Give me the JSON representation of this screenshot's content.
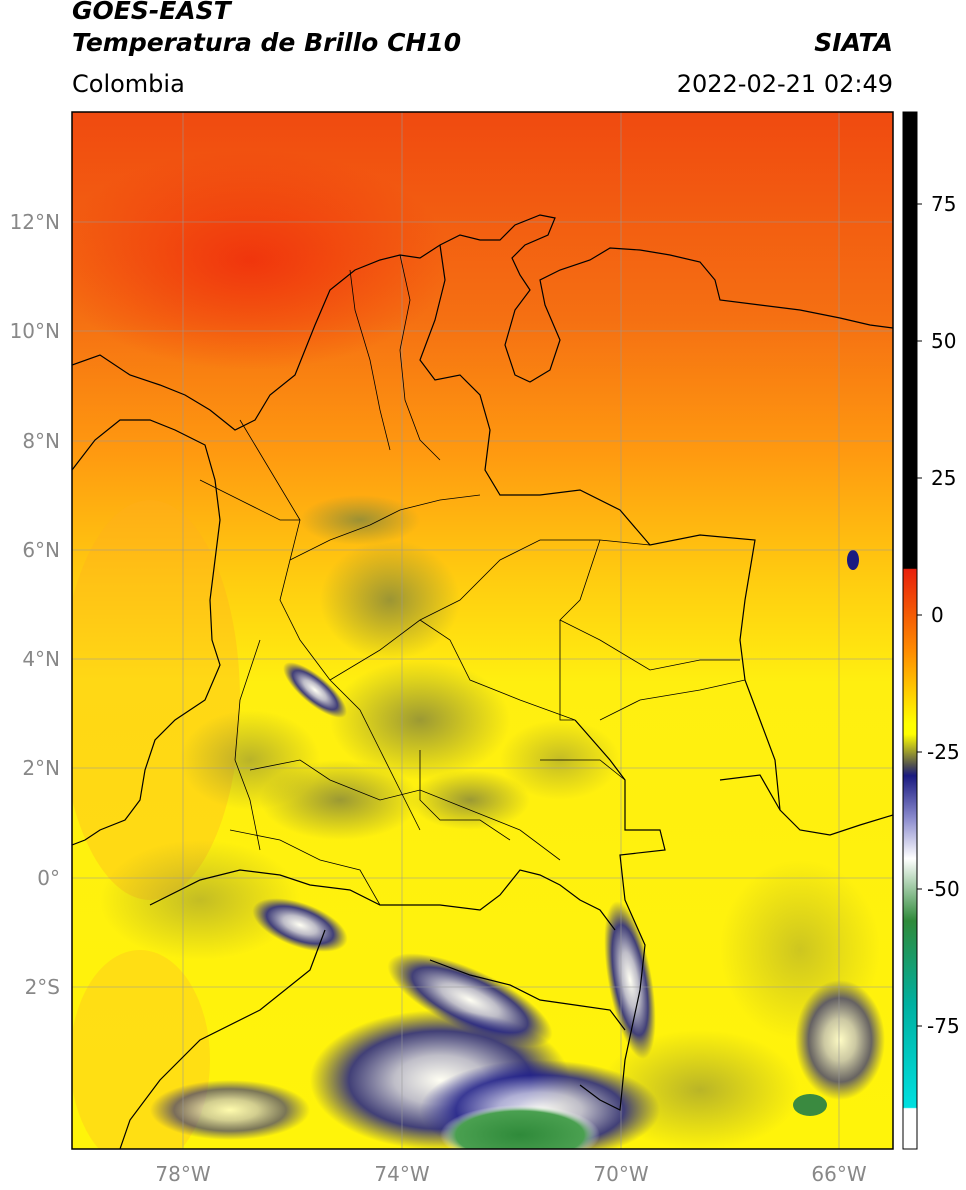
{
  "header": {
    "title_line1": "GOES-EAST",
    "title_line2": "Temperatura de Brillo CH10",
    "organization": "SIATA",
    "region": "Colombia",
    "timestamp": "2022-02-21 02:49"
  },
  "map": {
    "lat_labels": [
      "12°N",
      "10°N",
      "8°N",
      "6°N",
      "4°N",
      "2°N",
      "0°",
      "2°S"
    ],
    "lon_labels": [
      "78°W",
      "74°W",
      "70°W",
      "66°W"
    ]
  },
  "colorbar": {
    "tick_labels": [
      "75",
      "50",
      "25",
      "0",
      "-25",
      "-50",
      "-75"
    ],
    "range": [
      -97,
      88
    ],
    "colors": {
      "warm_limit": "#000000",
      "red": "#e8200c",
      "orange": "#ff8c00",
      "yellow": "#ffff00",
      "olive": "#8a8a35",
      "navy": "#1a1a80",
      "white": "#ffffff",
      "green": "#2f8a3a",
      "cyan": "#00d0d0"
    }
  }
}
